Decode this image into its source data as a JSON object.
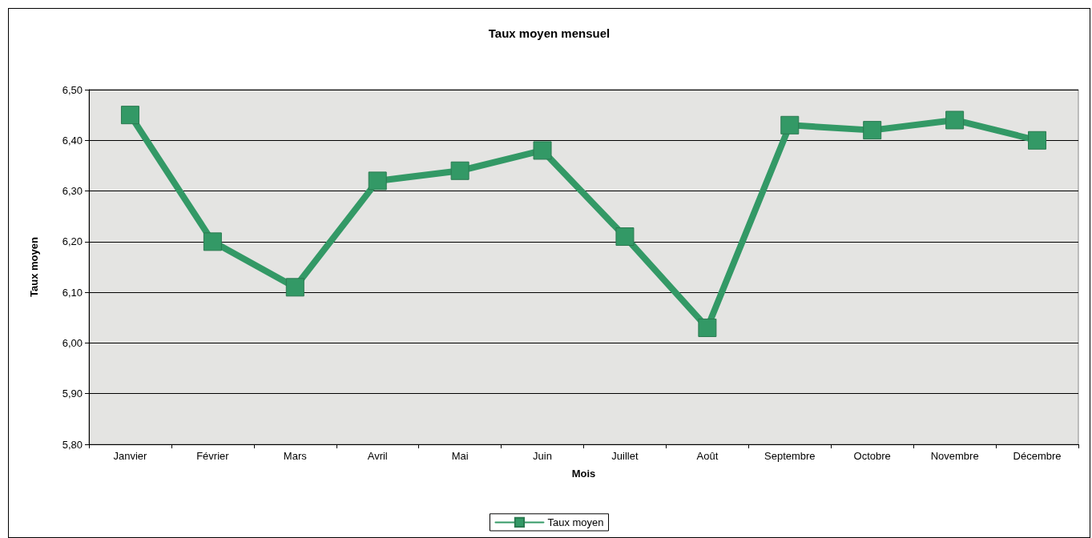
{
  "chart_data": {
    "type": "line",
    "title": "Taux moyen mensuel",
    "xlabel": "Mois",
    "ylabel": "Taux moyen",
    "categories": [
      "Janvier",
      "Février",
      "Mars",
      "Avril",
      "Mai",
      "Juin",
      "Juillet",
      "Août",
      "Septembre",
      "Octobre",
      "Novembre",
      "Décembre"
    ],
    "series": [
      {
        "name": "Taux moyen",
        "color": "#339966",
        "values": [
          6.45,
          6.2,
          6.11,
          6.32,
          6.34,
          6.38,
          6.21,
          6.03,
          6.43,
          6.42,
          6.44,
          6.4
        ]
      }
    ],
    "ylim": [
      5.8,
      6.5
    ],
    "yticks": [
      {
        "value": 5.8,
        "label": "5,80"
      },
      {
        "value": 5.9,
        "label": "5,90"
      },
      {
        "value": 6.0,
        "label": "6,00"
      },
      {
        "value": 6.1,
        "label": "6,10"
      },
      {
        "value": 6.2,
        "label": "6,20"
      },
      {
        "value": 6.3,
        "label": "6,30"
      },
      {
        "value": 6.4,
        "label": "6,40"
      },
      {
        "value": 6.5,
        "label": "6,50"
      }
    ],
    "grid": "y",
    "legend": "bottom",
    "marker": "square",
    "line_style": "solid"
  }
}
